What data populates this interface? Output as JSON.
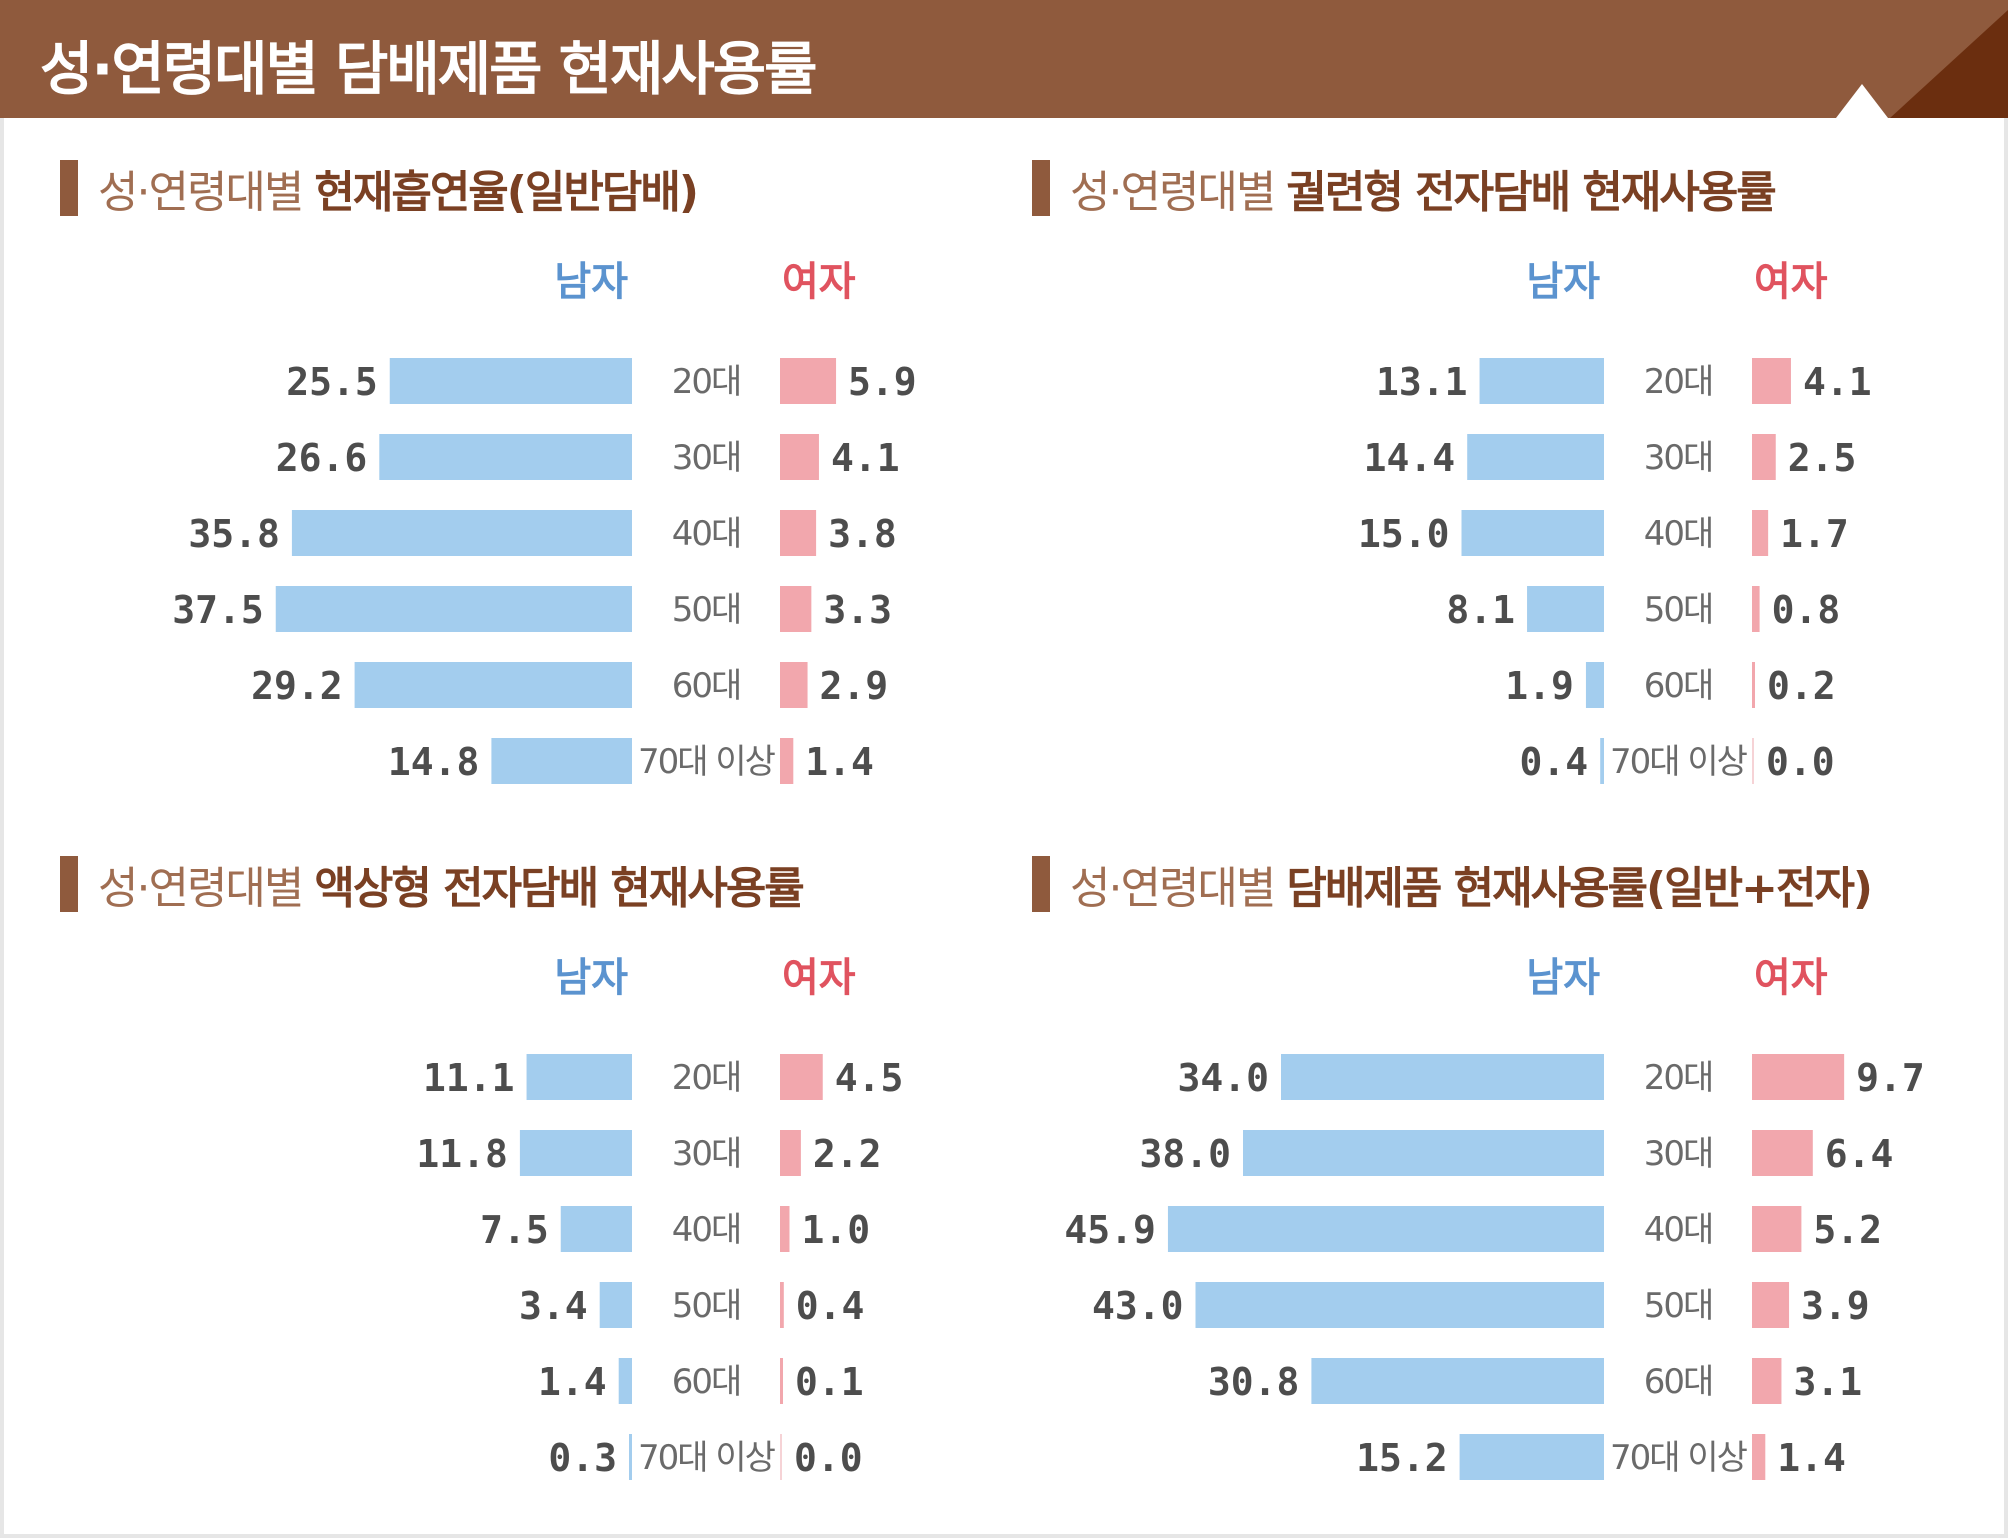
{
  "header": {
    "title": "성·연령대별 담배제품 현재사용률"
  },
  "legend": {
    "male": "남자",
    "female": "여자"
  },
  "colors": {
    "header": "#8f5a3d",
    "male": "#a3cdee",
    "female": "#f2a7ad",
    "male_text": "#5b93cf",
    "female_text": "#e0535f"
  },
  "chart_data": [
    {
      "type": "bar",
      "title_prefix": "성·연령대별",
      "title": "현재흡연율(일반담배)",
      "categories": [
        "20대",
        "30대",
        "40대",
        "50대",
        "60대",
        "70대 이상"
      ],
      "series": [
        {
          "name": "남자",
          "values": [
            25.5,
            26.6,
            35.8,
            37.5,
            29.2,
            14.8
          ],
          "labels": [
            "25.5",
            "26.6",
            "35.8",
            "37.5",
            "29.2",
            "14.8"
          ]
        },
        {
          "name": "여자",
          "values": [
            5.9,
            4.1,
            3.8,
            3.3,
            2.9,
            1.4
          ],
          "labels": [
            "5.9",
            "4.1",
            "3.8",
            "3.3",
            "2.9",
            "1.4"
          ]
        }
      ]
    },
    {
      "type": "bar",
      "title_prefix": "성·연령대별",
      "title": "궐련형 전자담배 현재사용률",
      "categories": [
        "20대",
        "30대",
        "40대",
        "50대",
        "60대",
        "70대 이상"
      ],
      "series": [
        {
          "name": "남자",
          "values": [
            13.1,
            14.4,
            15.0,
            8.1,
            1.9,
            0.4
          ],
          "labels": [
            "13.1",
            "14.4",
            "15.0",
            "8.1",
            "1.9",
            "0.4"
          ]
        },
        {
          "name": "여자",
          "values": [
            4.1,
            2.5,
            1.7,
            0.8,
            0.2,
            0.0
          ],
          "labels": [
            "4.1",
            "2.5",
            "1.7",
            "0.8",
            "0.2",
            "0.0"
          ]
        }
      ]
    },
    {
      "type": "bar",
      "title_prefix": "성·연령대별",
      "title": "액상형 전자담배 현재사용률",
      "categories": [
        "20대",
        "30대",
        "40대",
        "50대",
        "60대",
        "70대 이상"
      ],
      "series": [
        {
          "name": "남자",
          "values": [
            11.1,
            11.8,
            7.5,
            3.4,
            1.4,
            0.3
          ],
          "labels": [
            "11.1",
            "11.8",
            "7.5",
            "3.4",
            "1.4",
            "0.3"
          ]
        },
        {
          "name": "여자",
          "values": [
            4.5,
            2.2,
            1.0,
            0.4,
            0.1,
            0.0
          ],
          "labels": [
            "4.5",
            "2.2",
            "1.0",
            "0.4",
            "0.1",
            "0.0"
          ]
        }
      ]
    },
    {
      "type": "bar",
      "title_prefix": "성·연령대별",
      "title": "담배제품 현재사용률(일반+전자)",
      "categories": [
        "20대",
        "30대",
        "40대",
        "50대",
        "60대",
        "70대 이상"
      ],
      "series": [
        {
          "name": "남자",
          "values": [
            34.0,
            38.0,
            45.9,
            43.0,
            30.8,
            15.2
          ],
          "labels": [
            "34.0",
            "38.0",
            "45.9",
            "43.0",
            "30.8",
            "15.2"
          ]
        },
        {
          "name": "여자",
          "values": [
            9.7,
            6.4,
            5.2,
            3.9,
            3.1,
            1.4
          ],
          "labels": [
            "9.7",
            "6.4",
            "5.2",
            "3.9",
            "3.1",
            "1.4"
          ]
        }
      ]
    }
  ]
}
